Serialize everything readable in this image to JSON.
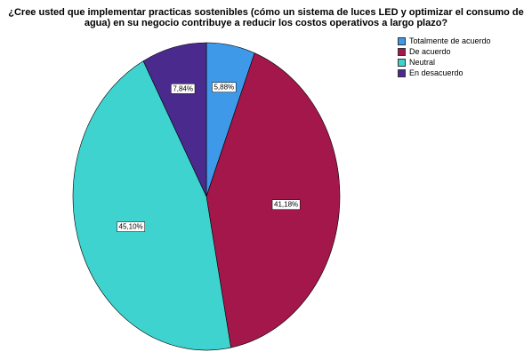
{
  "chart_data": {
    "type": "pie",
    "title_lines": [
      "¿Cree usted que implementar practicas sostenibles (cómo un sistema de luces LED y optimizar el consumo de",
      "agua) en su negocio contribuye a reducir los costos operativos a largo plazo?"
    ],
    "slices": [
      {
        "label": "Totalmente de acuerdo",
        "value": 5.88,
        "text": "5,88%",
        "color": "#3E9AE8"
      },
      {
        "label": "De acuerdo",
        "value": 41.18,
        "text": "41,18%",
        "color": "#A3174B"
      },
      {
        "label": "Neutral",
        "value": 45.1,
        "text": "45,10%",
        "color": "#3FD3CF"
      },
      {
        "label": "En desacuerdo",
        "value": 7.84,
        "text": "7,84%",
        "color": "#4B2A8E"
      }
    ],
    "legend_position": "top-right"
  }
}
